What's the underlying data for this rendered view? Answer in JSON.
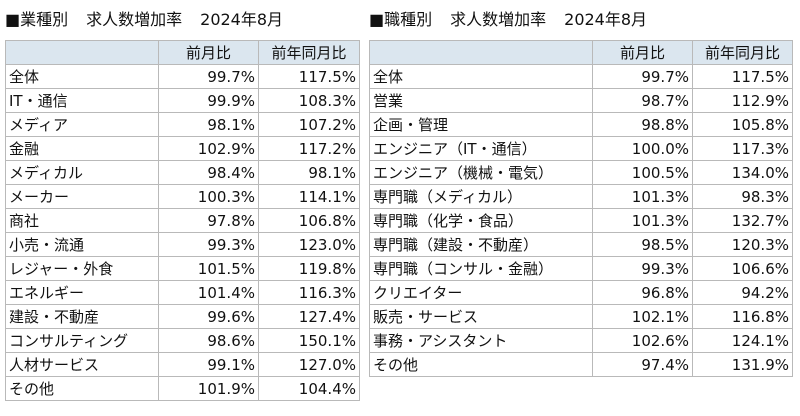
{
  "left": {
    "title_prefix": "■業種別",
    "title_main": "求人数増加率",
    "title_period": "2024年8月",
    "headers": [
      "",
      "前月比",
      "前年同月比"
    ],
    "rows": [
      {
        "label": "全体",
        "mom": "99.7%",
        "yoy": "117.5%"
      },
      {
        "label": "IT・通信",
        "mom": "99.9%",
        "yoy": "108.3%"
      },
      {
        "label": "メディア",
        "mom": "98.1%",
        "yoy": "107.2%"
      },
      {
        "label": "金融",
        "mom": "102.9%",
        "yoy": "117.2%"
      },
      {
        "label": "メディカル",
        "mom": "98.4%",
        "yoy": "98.1%"
      },
      {
        "label": "メーカー",
        "mom": "100.3%",
        "yoy": "114.1%"
      },
      {
        "label": "商社",
        "mom": "97.8%",
        "yoy": "106.8%"
      },
      {
        "label": "小売・流通",
        "mom": "99.3%",
        "yoy": "123.0%"
      },
      {
        "label": "レジャー・外食",
        "mom": "101.5%",
        "yoy": "119.8%"
      },
      {
        "label": "エネルギー",
        "mom": "101.4%",
        "yoy": "116.3%"
      },
      {
        "label": "建設・不動産",
        "mom": "99.6%",
        "yoy": "127.4%"
      },
      {
        "label": "コンサルティング",
        "mom": "98.6%",
        "yoy": "150.1%"
      },
      {
        "label": "人材サービス",
        "mom": "99.1%",
        "yoy": "127.0%"
      },
      {
        "label": "その他",
        "mom": "101.9%",
        "yoy": "104.4%"
      }
    ]
  },
  "right": {
    "title_prefix": "■職種別",
    "title_main": "求人数増加率",
    "title_period": "2024年8月",
    "headers": [
      "",
      "前月比",
      "前年同月比"
    ],
    "rows": [
      {
        "label": "全体",
        "mom": "99.7%",
        "yoy": "117.5%"
      },
      {
        "label": "営業",
        "mom": "98.7%",
        "yoy": "112.9%"
      },
      {
        "label": "企画・管理",
        "mom": "98.8%",
        "yoy": "105.8%"
      },
      {
        "label": "エンジニア（IT・通信）",
        "mom": "100.0%",
        "yoy": "117.3%"
      },
      {
        "label": "エンジニア（機械・電気）",
        "mom": "100.5%",
        "yoy": "134.0%"
      },
      {
        "label": "専門職（メディカル）",
        "mom": "101.3%",
        "yoy": "98.3%"
      },
      {
        "label": "専門職（化学・食品）",
        "mom": "101.3%",
        "yoy": "132.7%"
      },
      {
        "label": "専門職（建設・不動産）",
        "mom": "98.5%",
        "yoy": "120.3%"
      },
      {
        "label": "専門職（コンサル・金融）",
        "mom": "99.3%",
        "yoy": "106.6%"
      },
      {
        "label": "クリエイター",
        "mom": "96.8%",
        "yoy": "94.2%"
      },
      {
        "label": "販売・サービス",
        "mom": "102.1%",
        "yoy": "116.8%"
      },
      {
        "label": "事務・アシスタント",
        "mom": "102.6%",
        "yoy": "124.1%"
      },
      {
        "label": "その他",
        "mom": "97.4%",
        "yoy": "131.9%"
      }
    ]
  }
}
